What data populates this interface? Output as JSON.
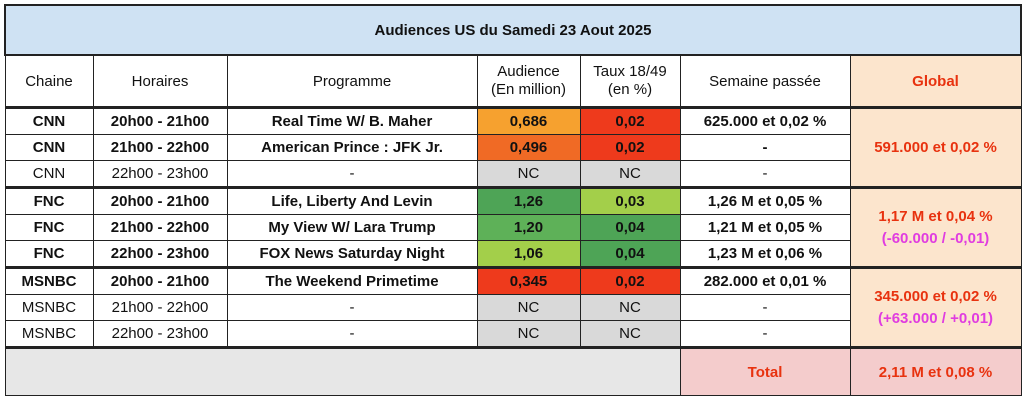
{
  "title": "Audiences US du Samedi 23 Aout 2025",
  "headers": {
    "chaine": "Chaine",
    "horaires": "Horaires",
    "programme": "Programme",
    "audience_1": "Audience",
    "audience_2": "(En million)",
    "taux_1": "Taux 18/49",
    "taux_2": "(en %)",
    "semaine": "Semaine passée",
    "global": "Global"
  },
  "rows": [
    {
      "chaine": "CNN",
      "horaires": "20h00 - 21h00",
      "programme": "Real Time W/ B. Maher",
      "audience": "0,686",
      "taux": "0,02",
      "semaine": "625.000 et 0,02 %",
      "bold": true,
      "aud_color": "#f6a12f",
      "taux_color": "#ee3a1c"
    },
    {
      "chaine": "CNN",
      "horaires": "21h00 - 22h00",
      "programme": "American Prince : JFK Jr.",
      "audience": "0,496",
      "taux": "0,02",
      "semaine": "-",
      "bold": true,
      "aud_color": "#f06a25",
      "taux_color": "#ee3a1c"
    },
    {
      "chaine": "CNN",
      "horaires": "22h00 - 23h00",
      "programme": "-",
      "audience": "NC",
      "taux": "NC",
      "semaine": "-",
      "bold": false,
      "aud_color": "#d9d9d9",
      "taux_color": "#d9d9d9"
    },
    {
      "chaine": "FNC",
      "horaires": "20h00 - 21h00",
      "programme": "Life, Liberty And Levin",
      "audience": "1,26",
      "taux": "0,03",
      "semaine": "1,26 M et 0,05 %",
      "bold": true,
      "aud_color": "#4ea456",
      "taux_color": "#a3cf4a"
    },
    {
      "chaine": "FNC",
      "horaires": "21h00 - 22h00",
      "programme": "My View W/ Lara Trump",
      "audience": "1,20",
      "taux": "0,04",
      "semaine": "1,21 M et 0,05 %",
      "bold": true,
      "aud_color": "#5eb158",
      "taux_color": "#4ea456"
    },
    {
      "chaine": "FNC",
      "horaires": "22h00 - 23h00",
      "programme": "FOX News Saturday Night",
      "audience": "1,06",
      "taux": "0,04",
      "semaine": "1,23 M et 0,06 %",
      "bold": true,
      "aud_color": "#a3cf4a",
      "taux_color": "#4ea456"
    },
    {
      "chaine": "MSNBC",
      "horaires": "20h00 - 21h00",
      "programme": "The Weekend Primetime",
      "audience": "0,345",
      "taux": "0,02",
      "semaine": "282.000 et 0,01 %",
      "bold": true,
      "aud_color": "#ee3a1c",
      "taux_color": "#ee3a1c"
    },
    {
      "chaine": "MSNBC",
      "horaires": "21h00 - 22h00",
      "programme": "-",
      "audience": "NC",
      "taux": "NC",
      "semaine": "-",
      "bold": false,
      "aud_color": "#d9d9d9",
      "taux_color": "#d9d9d9"
    },
    {
      "chaine": "MSNBC",
      "horaires": "22h00 - 23h00",
      "programme": "-",
      "audience": "NC",
      "taux": "NC",
      "semaine": "-",
      "bold": false,
      "aud_color": "#d9d9d9",
      "taux_color": "#d9d9d9"
    }
  ],
  "globals": {
    "cnn": "591.000 et 0,02 %",
    "fnc_1": "1,17 M et 0,04 %",
    "fnc_2": "(-60.000 / -0,01)",
    "msnbc_1": "345.000 et 0,02 %",
    "msnbc_2": "(+63.000 / +0,01)"
  },
  "footer": {
    "total_label": "Total",
    "total_value": "2,11 M et 0,08 %"
  }
}
